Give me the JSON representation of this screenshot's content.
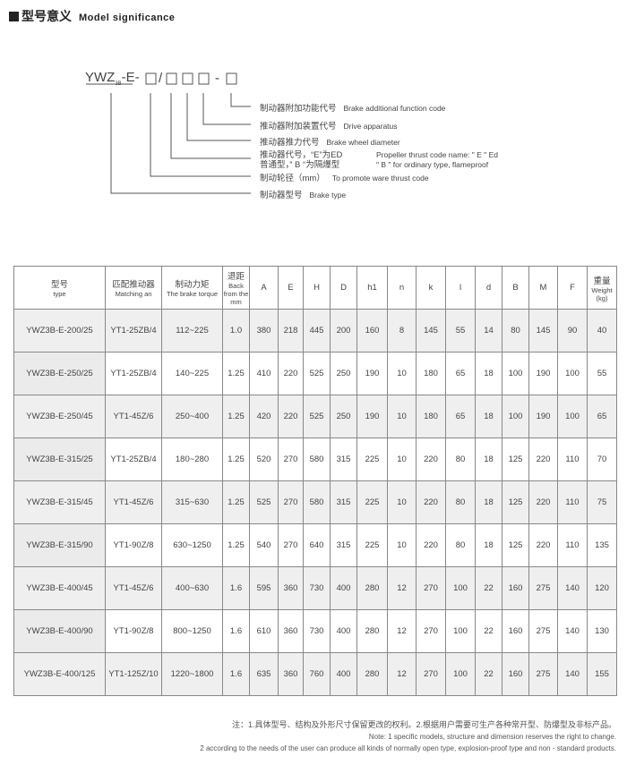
{
  "header": {
    "title_cn": "型号意义",
    "title_en": "Model significance"
  },
  "diagram": {
    "code": {
      "prefix": "YWZ",
      "sub": "3B",
      "suffix": "-E-",
      "box": "□",
      "slash": "/",
      "dash": "-"
    },
    "labels": [
      {
        "cn": "制动器附加功能代号",
        "en": "Brake additional function code"
      },
      {
        "cn": "推动器附加装置代号",
        "en": "Drive apparatus"
      },
      {
        "cn": "推动器推力代号",
        "en": "Brake wheel diameter"
      },
      {
        "cn": "推动器代号，“E”为ED",
        "en": "Propeller thrust code name: \" E \" Ed",
        "cn2": "普通型，” B “为隔爆型",
        "en2": "\" B \" for ordinary type, flameproof"
      },
      {
        "cn": "制动轮径（mm）",
        "en": "To promote ware thrust code"
      },
      {
        "cn": "制动器型号",
        "en": "Brake type"
      }
    ]
  },
  "table": {
    "headers": [
      {
        "cn": "型号",
        "en": "type"
      },
      {
        "cn": "匹配推动器",
        "en": "Matching an"
      },
      {
        "cn": "制动力矩",
        "en": "The brake torque"
      },
      {
        "cn": "退距",
        "en": "Back from the mm"
      },
      {
        "cn": "A"
      },
      {
        "cn": "E"
      },
      {
        "cn": "H"
      },
      {
        "cn": "D"
      },
      {
        "cn": "h1"
      },
      {
        "cn": "n"
      },
      {
        "cn": "k"
      },
      {
        "cn": "l"
      },
      {
        "cn": "d"
      },
      {
        "cn": "B"
      },
      {
        "cn": "M"
      },
      {
        "cn": "F"
      },
      {
        "cn": "重量",
        "en": "Weight (kg)"
      }
    ],
    "rows": [
      [
        "YWZ3B-E-200/25",
        "YT1-25ZB/4",
        "112~225",
        "1.0",
        "380",
        "218",
        "445",
        "200",
        "160",
        "8",
        "145",
        "55",
        "14",
        "80",
        "145",
        "90",
        "40"
      ],
      [
        "YWZ3B-E-250/25",
        "YT1-25ZB/4",
        "140~225",
        "1.25",
        "410",
        "220",
        "525",
        "250",
        "190",
        "10",
        "180",
        "65",
        "18",
        "100",
        "190",
        "100",
        "55"
      ],
      [
        "YWZ3B-E-250/45",
        "YT1-45Z/6",
        "250~400",
        "1.25",
        "420",
        "220",
        "525",
        "250",
        "190",
        "10",
        "180",
        "65",
        "18",
        "100",
        "190",
        "100",
        "65"
      ],
      [
        "YWZ3B-E-315/25",
        "YT1-25ZB/4",
        "180~280",
        "1.25",
        "520",
        "270",
        "580",
        "315",
        "225",
        "10",
        "220",
        "80",
        "18",
        "125",
        "220",
        "110",
        "70"
      ],
      [
        "YWZ3B-E-315/45",
        "YT1-45Z/6",
        "315~630",
        "1.25",
        "525",
        "270",
        "580",
        "315",
        "225",
        "10",
        "220",
        "80",
        "18",
        "125",
        "220",
        "110",
        "75"
      ],
      [
        "YWZ3B-E-315/90",
        "YT1-90Z/8",
        "630~1250",
        "1.25",
        "540",
        "270",
        "640",
        "315",
        "225",
        "10",
        "220",
        "80",
        "18",
        "125",
        "220",
        "110",
        "135"
      ],
      [
        "YWZ3B-E-400/45",
        "YT1-45Z/6",
        "400~630",
        "1.6",
        "595",
        "360",
        "730",
        "400",
        "280",
        "12",
        "270",
        "100",
        "22",
        "160",
        "275",
        "140",
        "120"
      ],
      [
        "YWZ3B-E-400/90",
        "YT1-90Z/8",
        "800~1250",
        "1.6",
        "610",
        "360",
        "730",
        "400",
        "280",
        "12",
        "270",
        "100",
        "22",
        "160",
        "275",
        "140",
        "130"
      ],
      [
        "YWZ3B-E-400/125",
        "YT1-125Z/10",
        "1220~1800",
        "1.6",
        "635",
        "360",
        "760",
        "400",
        "280",
        "12",
        "270",
        "100",
        "22",
        "160",
        "275",
        "140",
        "155"
      ]
    ]
  },
  "notes": {
    "cn": "注：1.具体型号、结构及外形尺寸保留更改的权利。2.根据用户需要可生产各种常开型、防爆型及非标产品。",
    "en1": "Note: 1 specific models, structure and dimension reserves the right to change.",
    "en2": "2 according to the needs of the user can produce all kinds of normally open type, explosion-proof type and non - standard products."
  }
}
